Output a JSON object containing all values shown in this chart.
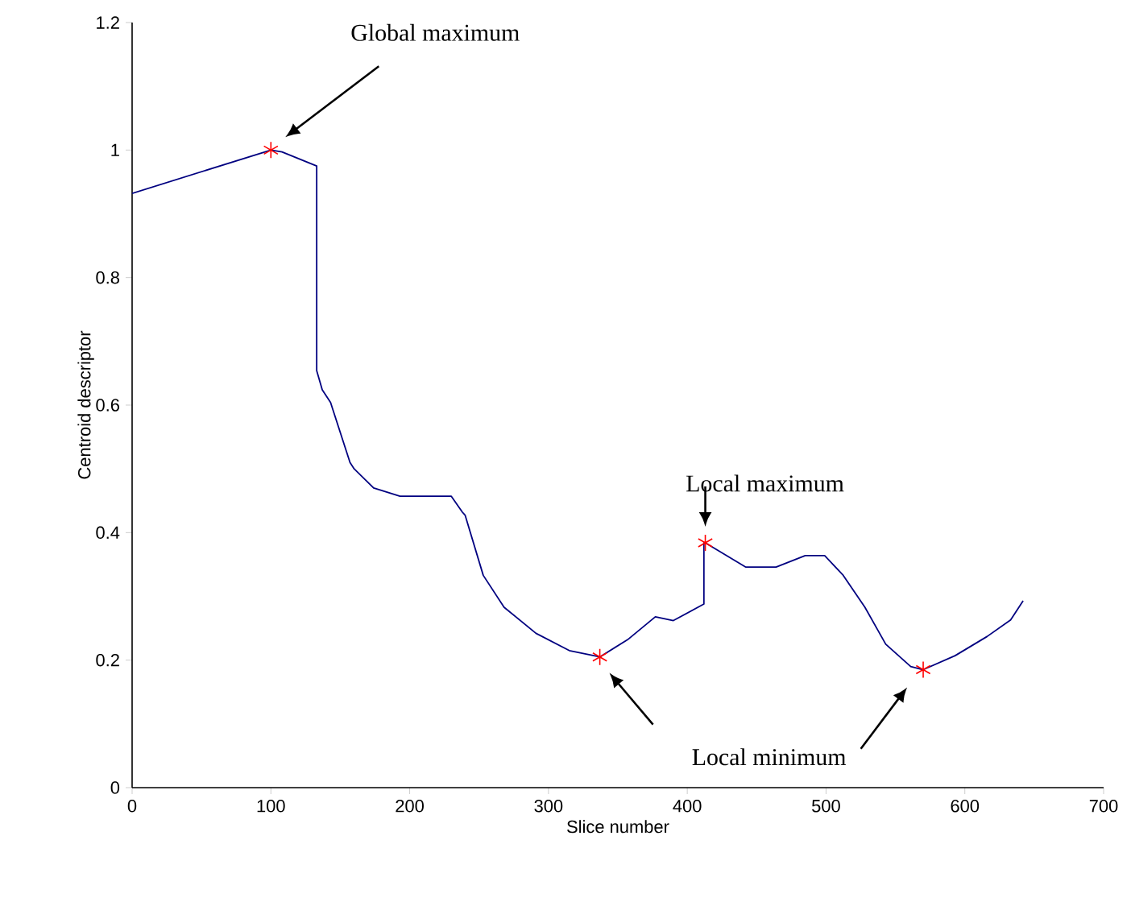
{
  "chart_data": {
    "type": "line",
    "xlabel": "Slice number",
    "ylabel": "Centroid descriptor",
    "xlim": [
      0,
      700
    ],
    "xticks": [
      0,
      100,
      200,
      300,
      400,
      500,
      600,
      700
    ],
    "ylim": [
      0,
      1.2
    ],
    "yticks": [
      0,
      0.2,
      0.4,
      0.6,
      0.8,
      1,
      1.2
    ],
    "grid": false,
    "series": [
      {
        "color": "#000080",
        "marker": "none",
        "x": [
          0,
          100,
          108,
          133,
          133,
          137,
          143,
          157,
          160,
          174,
          193,
          221,
          230,
          238,
          240,
          253,
          268,
          291,
          315,
          337,
          357,
          377,
          390,
          412,
          412,
          413,
          442,
          464,
          485,
          499,
          512,
          528,
          543,
          561,
          570,
          593,
          616,
          633,
          642
        ],
        "values": [
          0.932,
          1.0,
          0.997,
          0.975,
          0.654,
          0.624,
          0.604,
          0.51,
          0.5,
          0.47,
          0.457,
          0.457,
          0.457,
          0.432,
          0.427,
          0.333,
          0.283,
          0.242,
          0.215,
          0.205,
          0.232,
          0.268,
          0.262,
          0.288,
          0.384,
          0.384,
          0.346,
          0.346,
          0.364,
          0.364,
          0.334,
          0.283,
          0.225,
          0.19,
          0.185,
          0.207,
          0.237,
          0.263,
          0.293
        ]
      },
      {
        "type": "scatter",
        "color": "#ff0000",
        "marker": "cross",
        "x": [
          100,
          337,
          413,
          570
        ],
        "values": [
          1.0,
          0.205,
          0.384,
          0.185
        ]
      }
    ],
    "annotations": [
      "Global maximum",
      "Local maximum",
      "Local minimum"
    ]
  }
}
